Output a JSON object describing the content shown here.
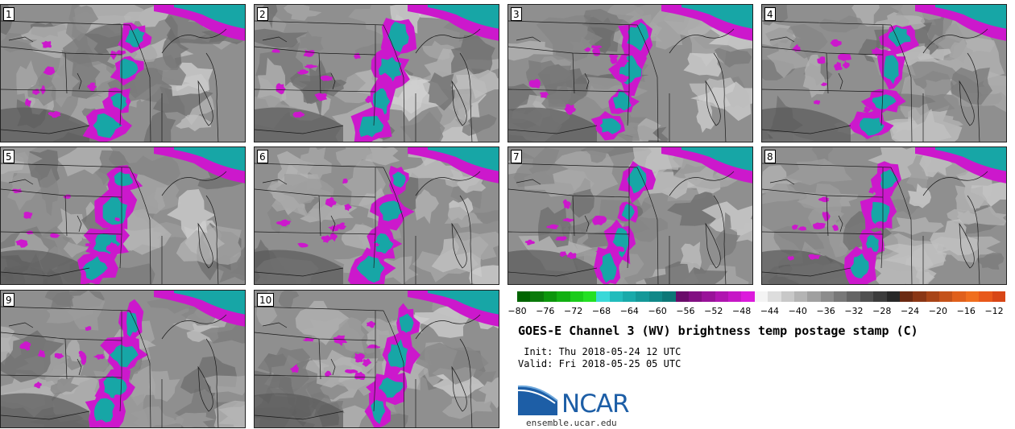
{
  "panels": [
    {
      "label": "1"
    },
    {
      "label": "2"
    },
    {
      "label": "3"
    },
    {
      "label": "4"
    },
    {
      "label": "5"
    },
    {
      "label": "6"
    },
    {
      "label": "7"
    },
    {
      "label": "8"
    },
    {
      "label": "9"
    },
    {
      "label": "10"
    }
  ],
  "colorbar": {
    "colors": [
      "#006400",
      "#0a7a0a",
      "#0c960c",
      "#12b012",
      "#1acc1a",
      "#24e024",
      "#3ad8d8",
      "#22bcbc",
      "#19aaaa",
      "#149898",
      "#108888",
      "#0d7777",
      "#6a0c6a",
      "#820f82",
      "#991299",
      "#b015b0",
      "#c617c6",
      "#dc1adc",
      "#f4f4f4",
      "#dddddd",
      "#c8c8c8",
      "#b4b4b4",
      "#a0a0a0",
      "#8c8c8c",
      "#787878",
      "#646464",
      "#505050",
      "#3c3c3c",
      "#282828",
      "#6b2a12",
      "#8a3615",
      "#a84417",
      "#c4521a",
      "#e0601c",
      "#f06e1e",
      "#e8581a",
      "#d84616"
    ],
    "ticks": [
      "−80",
      "−76",
      "−72",
      "−68",
      "−64",
      "−60",
      "−56",
      "−52",
      "−48",
      "−44",
      "−40",
      "−36",
      "−32",
      "−28",
      "−24",
      "−20",
      "−16",
      "−12"
    ]
  },
  "title": "GOES-E Channel 3 (WV) brightness temp postage stamp (C)",
  "init": " Init: Thu 2018-05-24 12 UTC",
  "valid": "Valid: Fri 2018-05-25 05 UTC",
  "logo": {
    "text": "NCAR",
    "site": "ensemble.ucar.edu"
  }
}
